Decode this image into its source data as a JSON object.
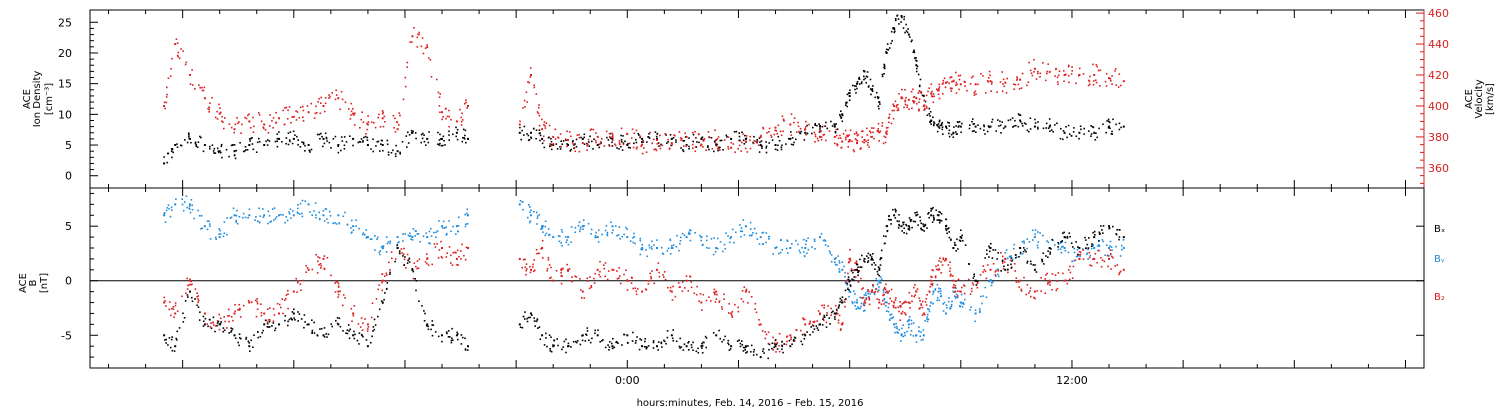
{
  "chart_data": [
    {
      "type": "scatter",
      "panel": "top",
      "ylabel_lines": [
        "ACE",
        "Ion Density",
        "[cm⁻³]"
      ],
      "ylabel2_lines": [
        "ACE",
        "Velocity",
        "[km/s]"
      ],
      "ylim": [
        -2,
        27
      ],
      "y2lim": [
        347,
        462
      ],
      "yticks": [
        0,
        5,
        10,
        15,
        20,
        25
      ],
      "y2ticks": [
        360,
        380,
        400,
        420,
        440,
        460
      ],
      "colors": {
        "density": "#000000",
        "velocity": "#dd1e1e"
      },
      "series": [
        {
          "axis": "left",
          "color": "#000000",
          "x": [
            -12.5,
            -12.2,
            -11.8,
            -11.4,
            -11.0,
            -10.6,
            -10.2,
            -9.8,
            -9.4,
            -9.0,
            -8.6,
            -8.2,
            -7.8,
            -7.4,
            -7.0,
            -6.6,
            -6.2,
            -5.8,
            -5.4,
            -5.0,
            -4.6,
            -4.3,
            -2.9,
            -2.6,
            -2.3,
            -2.0,
            -1.6,
            -1.2,
            -0.8,
            -0.4,
            0.0,
            0.4,
            0.8,
            1.2,
            1.6,
            2.0,
            2.4,
            2.8,
            3.2,
            3.6,
            4.0,
            4.4,
            4.8,
            5.2,
            5.6,
            5.8,
            6.0,
            6.2,
            6.4,
            6.6,
            6.8,
            7.0,
            7.2,
            7.4,
            7.6,
            7.8,
            8.0,
            8.2,
            8.4,
            8.6,
            8.8,
            9.0,
            9.4,
            9.8,
            10.2,
            10.6,
            11.0,
            11.4,
            11.8,
            12.2,
            12.6,
            13.0,
            13.4
          ],
          "y": [
            2,
            5,
            6,
            5,
            4,
            4,
            5,
            5,
            6,
            6,
            5,
            6,
            5,
            6,
            5,
            5,
            4,
            7,
            6,
            6,
            7,
            6,
            7,
            7,
            6,
            5,
            5,
            6,
            5,
            6,
            5,
            6,
            6,
            6,
            5,
            6,
            5,
            6,
            6,
            5,
            5,
            6,
            7,
            8,
            8,
            10,
            13,
            15,
            17,
            14,
            12,
            20,
            24,
            26,
            23,
            18,
            13,
            9,
            8,
            8,
            7,
            8,
            8,
            8,
            8,
            9,
            8,
            8,
            7,
            7,
            7,
            8,
            8
          ]
        },
        {
          "axis": "right",
          "color": "#dd1e1e",
          "x": [
            -12.5,
            -12.2,
            -11.8,
            -11.4,
            -11.0,
            -10.6,
            -10.2,
            -9.8,
            -9.4,
            -9.0,
            -8.6,
            -8.2,
            -7.8,
            -7.4,
            -7.0,
            -6.6,
            -6.2,
            -5.8,
            -5.4,
            -5.0,
            -4.6,
            -4.3,
            -2.9,
            -2.6,
            -2.3,
            -2.0,
            -1.6,
            -1.2,
            -0.8,
            -0.4,
            0.0,
            0.4,
            0.8,
            1.2,
            1.6,
            2.0,
            2.4,
            2.8,
            3.2,
            3.6,
            4.0,
            4.4,
            4.8,
            5.2,
            5.6,
            5.8,
            6.0,
            6.2,
            6.4,
            6.6,
            6.8,
            7.0,
            7.2,
            7.4,
            7.6,
            7.8,
            8.0,
            8.2,
            8.4,
            8.6,
            8.8,
            9.0,
            9.4,
            9.8,
            10.2,
            10.6,
            11.0,
            11.4,
            11.8,
            12.2,
            12.6,
            13.0,
            13.4
          ],
          "y": [
            400,
            440,
            420,
            405,
            395,
            385,
            390,
            388,
            392,
            393,
            396,
            400,
            405,
            395,
            388,
            392,
            385,
            445,
            438,
            396,
            390,
            400,
            388,
            420,
            385,
            380,
            378,
            376,
            380,
            380,
            382,
            375,
            378,
            376,
            380,
            375,
            378,
            373,
            377,
            380,
            386,
            388,
            385,
            380,
            380,
            377,
            378,
            376,
            378,
            380,
            383,
            382,
            400,
            405,
            404,
            405,
            400,
            408,
            410,
            415,
            416,
            414,
            414,
            416,
            415,
            417,
            424,
            422,
            420,
            420,
            420,
            418,
            416
          ]
        }
      ]
    },
    {
      "type": "scatter",
      "panel": "bottom",
      "ylabel_lines": [
        "ACE",
        "B",
        "[nT]"
      ],
      "ylim": [
        -8,
        8.5
      ],
      "yticks": [
        -5,
        0,
        5
      ],
      "zero_line": true,
      "legend_labels": [
        "Bₓ",
        "Bᵧ",
        "B₂"
      ],
      "colors": {
        "bx": "#000000",
        "by": "#1e8cdc",
        "bz": "#dd1e1e"
      },
      "series": [
        {
          "color": "#000000",
          "x": [
            -12.5,
            -12.2,
            -11.8,
            -11.4,
            -11.0,
            -10.6,
            -10.2,
            -9.8,
            -9.4,
            -9.0,
            -8.6,
            -8.2,
            -7.8,
            -7.4,
            -7.0,
            -6.6,
            -6.2,
            -5.8,
            -5.4,
            -5.0,
            -4.6,
            -4.3,
            -2.9,
            -2.6,
            -2.3,
            -2.0,
            -1.6,
            -1.2,
            -0.8,
            -0.4,
            0.0,
            0.4,
            0.8,
            1.2,
            1.6,
            2.0,
            2.4,
            2.8,
            3.2,
            3.6,
            4.0,
            4.4,
            4.8,
            5.2,
            5.6,
            5.8,
            6.0,
            6.2,
            6.4,
            6.6,
            6.8,
            7.0,
            7.2,
            7.4,
            7.6,
            7.8,
            8.0,
            8.2,
            8.4,
            8.6,
            8.8,
            9.0,
            9.4,
            9.8,
            10.2,
            10.6,
            11.0,
            11.4,
            11.8,
            12.2,
            12.6,
            13.0,
            13.4
          ],
          "y": [
            -5,
            -6,
            -1,
            -4,
            -4,
            -5,
            -6,
            -4,
            -4,
            -3,
            -4,
            -5,
            -4,
            -5,
            -6,
            -2,
            3,
            1,
            -4,
            -5,
            -5,
            -6,
            -4,
            -3,
            -5,
            -6,
            -6,
            -5,
            -5,
            -6,
            -5,
            -6,
            -6,
            -5,
            -6,
            -6,
            -5,
            -6,
            -6,
            -7,
            -6,
            -6,
            -5,
            -4,
            -3,
            -2,
            0,
            1,
            2,
            2,
            1,
            5,
            6,
            5,
            5,
            6,
            5,
            6,
            6,
            5,
            3,
            4,
            0,
            3,
            1,
            3,
            1,
            3,
            4,
            3,
            4,
            5,
            4
          ]
        },
        {
          "color": "#1e8cdc",
          "x": [
            -12.5,
            -12.2,
            -11.8,
            -11.4,
            -11.0,
            -10.6,
            -10.2,
            -9.8,
            -9.4,
            -9.0,
            -8.6,
            -8.2,
            -7.8,
            -7.4,
            -7.0,
            -6.6,
            -6.2,
            -5.8,
            -5.4,
            -5.0,
            -4.6,
            -4.3,
            -2.9,
            -2.6,
            -2.3,
            -2.0,
            -1.6,
            -1.2,
            -0.8,
            -0.4,
            0.0,
            0.4,
            0.8,
            1.2,
            1.6,
            2.0,
            2.4,
            2.8,
            3.2,
            3.6,
            4.0,
            4.4,
            4.8,
            5.2,
            5.6,
            5.8,
            6.0,
            6.2,
            6.4,
            6.6,
            6.8,
            7.0,
            7.2,
            7.4,
            7.6,
            7.8,
            8.0,
            8.2,
            8.4,
            8.6,
            8.8,
            9.0,
            9.4,
            9.8,
            10.2,
            10.6,
            11.0,
            11.4,
            11.8,
            12.2,
            12.6,
            13.0,
            13.4
          ],
          "y": [
            6,
            7,
            7,
            5,
            4,
            6,
            6,
            6,
            6,
            6,
            7,
            6,
            6,
            5,
            4,
            3,
            4,
            4,
            4,
            5,
            5,
            6,
            7,
            6,
            5,
            4,
            4,
            5,
            4,
            5,
            4,
            3,
            3,
            3,
            4,
            4,
            3,
            4,
            5,
            4,
            3,
            3,
            3,
            4,
            2,
            1,
            -1,
            -2,
            -2,
            -1,
            0,
            -2,
            -4,
            -5,
            -4,
            -5,
            -5,
            -2,
            -1,
            -3,
            -1,
            -2,
            -3,
            0,
            2,
            3,
            4,
            3,
            3,
            2,
            3,
            3,
            3
          ]
        },
        {
          "color": "#dd1e1e",
          "x": [
            -12.5,
            -12.2,
            -11.8,
            -11.4,
            -11.0,
            -10.6,
            -10.2,
            -9.8,
            -9.4,
            -9.0,
            -8.6,
            -8.2,
            -7.8,
            -7.4,
            -7.0,
            -6.6,
            -6.2,
            -5.8,
            -5.4,
            -5.0,
            -4.6,
            -4.3,
            -2.9,
            -2.6,
            -2.3,
            -2.0,
            -1.6,
            -1.2,
            -0.8,
            -0.4,
            0.0,
            0.4,
            0.8,
            1.2,
            1.6,
            2.0,
            2.4,
            2.8,
            3.2,
            3.6,
            4.0,
            4.4,
            4.8,
            5.2,
            5.6,
            5.8,
            6.0,
            6.2,
            6.4,
            6.6,
            6.8,
            7.0,
            7.2,
            7.4,
            7.6,
            7.8,
            8.0,
            8.2,
            8.4,
            8.6,
            8.8,
            9.0,
            9.4,
            9.8,
            10.2,
            10.6,
            11.0,
            11.4,
            11.8,
            12.2,
            12.6,
            13.0,
            13.4
          ],
          "y": [
            -2,
            -3,
            0,
            -3,
            -4,
            -3,
            -2,
            -3,
            -3,
            -1,
            1,
            2,
            -1,
            -3,
            -4,
            0,
            3,
            1,
            2,
            3,
            2,
            3,
            2,
            1,
            3,
            0,
            1,
            -1,
            1,
            1,
            0,
            -1,
            1,
            -1,
            0,
            -2,
            -1,
            -3,
            -1,
            -4,
            -6,
            -5,
            -4,
            -3,
            -3,
            -4,
            2,
            1,
            -2,
            -1,
            -2,
            -1,
            -2,
            -3,
            -2,
            -1,
            -3,
            0,
            1,
            2,
            0,
            -1,
            0,
            1,
            2,
            0,
            -1,
            0,
            0,
            2,
            2,
            2,
            1
          ]
        }
      ]
    }
  ],
  "xaxis": {
    "xlim": [
      -14.5,
      21.5
    ],
    "major_ticks": [
      -12,
      -9,
      -6,
      -3,
      0,
      3,
      6,
      9,
      12,
      15,
      18,
      21
    ],
    "tick_labels": [
      {
        "x": 0,
        "label": "0:00"
      },
      {
        "x": 12,
        "label": "12:00"
      }
    ],
    "label": "hours:minutes, Feb. 14, 2016 – Feb. 15, 2016"
  }
}
